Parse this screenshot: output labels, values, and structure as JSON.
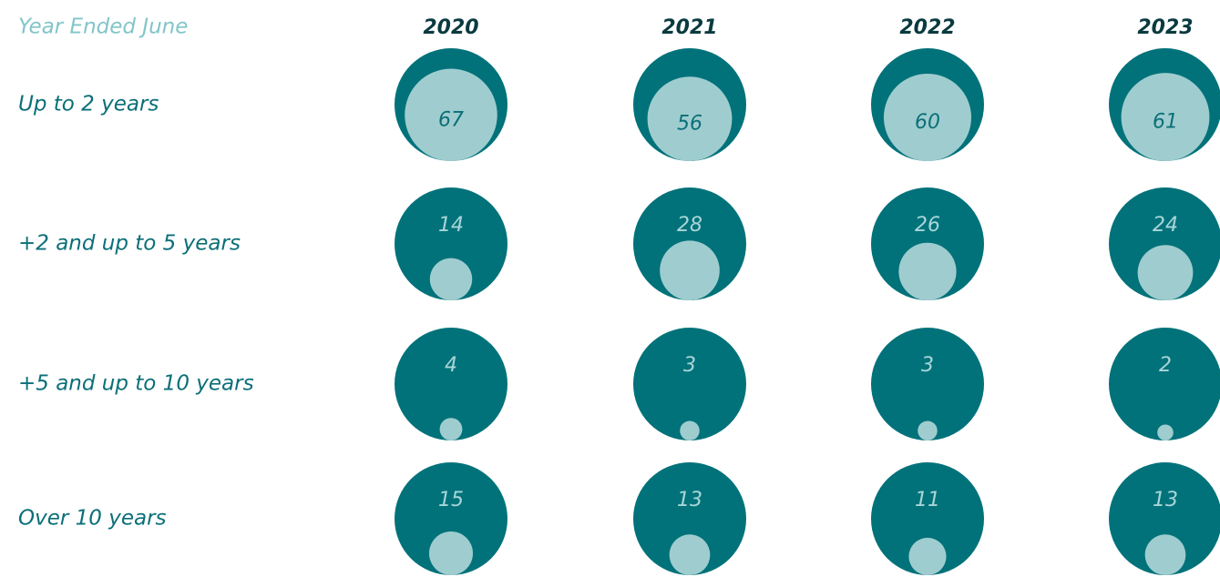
{
  "chart_data": {
    "type": "bubble",
    "header": "Year Ended June",
    "categories": [
      "2020",
      "2021",
      "2022",
      "2023"
    ],
    "outer_color": "#02727a",
    "inner_color": "#9fcdcf",
    "series": [
      {
        "name": "Up to 2 years",
        "values": [
          67,
          56,
          60,
          61
        ]
      },
      {
        "name": "+2 and up to 5 years",
        "values": [
          14,
          28,
          26,
          24
        ]
      },
      {
        "name": "+5 and up to 10 years",
        "values": [
          4,
          3,
          3,
          2
        ]
      },
      {
        "name": "Over 10 years",
        "values": [
          15,
          13,
          11,
          13
        ]
      }
    ]
  }
}
